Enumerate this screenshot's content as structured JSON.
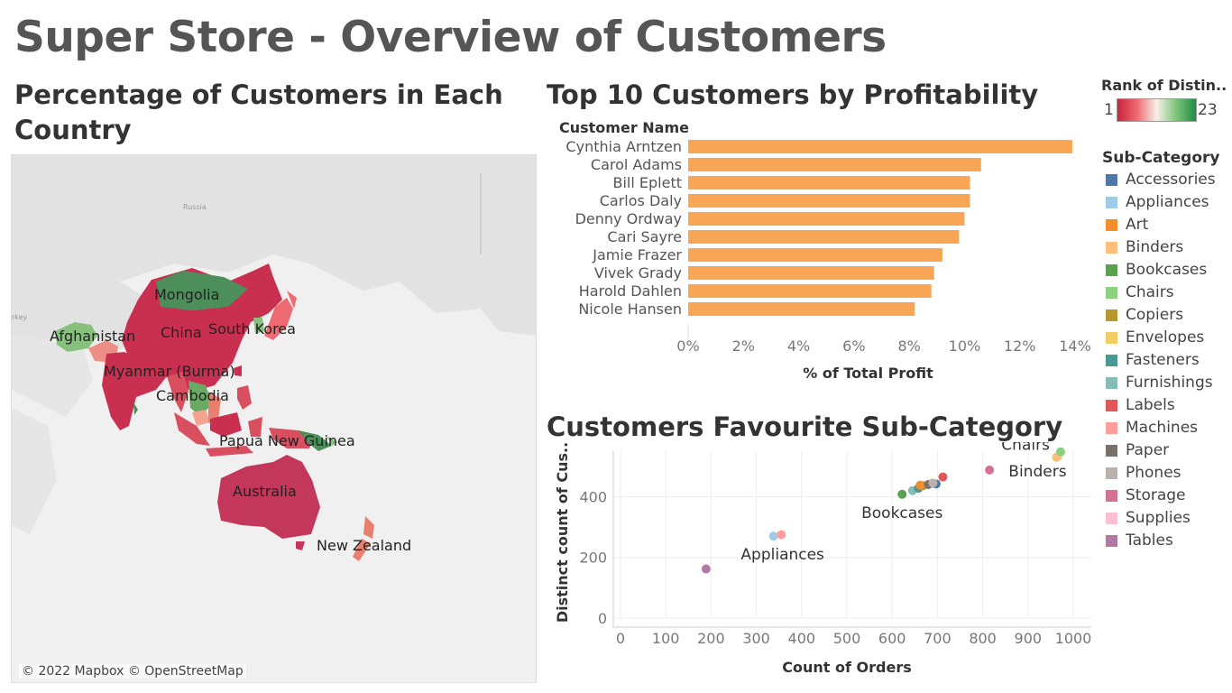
{
  "page_title": "Super Store - Overview of Customers",
  "map": {
    "title": "Percentage of Customers in Each Country",
    "title_line1": "Percentage of Customers in Each",
    "title_line2": "Country",
    "attribution": "© 2022 Mapbox © OpenStreetMap",
    "basemap_labels": {
      "russia": "Russia",
      "turkey": "rkey"
    },
    "labels": [
      "Mongolia",
      "China",
      "South Korea",
      "Afghanistan",
      "Myanmar (Burma)",
      "Cambodia",
      "Papua New Guinea",
      "Australia",
      "New Zealand"
    ]
  },
  "rank_legend": {
    "title": "Rank of Distin..",
    "min": "1",
    "max": "23",
    "colors": {
      "low": "#c9243a",
      "mid": "#f7f0e8",
      "high": "#1f8a44"
    }
  },
  "subcategory_legend": {
    "title": "Sub-Category",
    "items": [
      {
        "label": "Accessories",
        "color": "#4e79a7"
      },
      {
        "label": "Appliances",
        "color": "#a0cbe8"
      },
      {
        "label": "Art",
        "color": "#f28e2b"
      },
      {
        "label": "Binders",
        "color": "#ffbe7d"
      },
      {
        "label": "Bookcases",
        "color": "#59a14f"
      },
      {
        "label": "Chairs",
        "color": "#8cd17d"
      },
      {
        "label": "Copiers",
        "color": "#b6992d"
      },
      {
        "label": "Envelopes",
        "color": "#f1ce63"
      },
      {
        "label": "Fasteners",
        "color": "#499894"
      },
      {
        "label": "Furnishings",
        "color": "#86bcb6"
      },
      {
        "label": "Labels",
        "color": "#e15759"
      },
      {
        "label": "Machines",
        "color": "#ff9d9a"
      },
      {
        "label": "Paper",
        "color": "#79706e"
      },
      {
        "label": "Phones",
        "color": "#bab0ac"
      },
      {
        "label": "Storage",
        "color": "#d37295"
      },
      {
        "label": "Supplies",
        "color": "#fabfd2"
      },
      {
        "label": "Tables",
        "color": "#b07aa1"
      }
    ]
  },
  "chart_data": [
    {
      "type": "bar",
      "title": "Top 10 Customers by Profitability",
      "row_header": "Customer Name",
      "xlabel": "% of Total Profit",
      "ylabel": "",
      "categories": [
        "Cynthia Arntzen",
        "Carol Adams",
        "Bill Eplett",
        "Carlos Daly",
        "Denny Ordway",
        "Cari Sayre",
        "Jamie Frazer",
        "Vivek Grady",
        "Harold Dahlen",
        "Nicole Hansen"
      ],
      "values": [
        13.9,
        10.6,
        10.2,
        10.2,
        10.0,
        9.8,
        9.2,
        8.9,
        8.8,
        8.2
      ],
      "xlim": [
        0,
        14
      ],
      "xticks": [
        "0%",
        "2%",
        "4%",
        "6%",
        "8%",
        "10%",
        "12%",
        "14%"
      ],
      "bar_color": "#f8a655"
    },
    {
      "type": "scatter",
      "title": "Customers Favourite Sub-Category",
      "xlabel": "Count of Orders",
      "ylabel": "Distinct count of Cus..",
      "xlim": [
        0,
        1000
      ],
      "ylim": [
        0,
        550
      ],
      "xticks": [
        "0",
        "100",
        "200",
        "300",
        "400",
        "500",
        "600",
        "700",
        "800",
        "900",
        "1000"
      ],
      "yticks": [
        "0",
        "200",
        "400"
      ],
      "grid": true,
      "points": [
        {
          "series": "Tables",
          "x": 189,
          "y": 162
        },
        {
          "series": "Appliances",
          "x": 338,
          "y": 270
        },
        {
          "series": "Machines",
          "x": 355,
          "y": 275
        },
        {
          "series": "Bookcases",
          "x": 622,
          "y": 408
        },
        {
          "series": "Furnishings",
          "x": 645,
          "y": 420
        },
        {
          "series": "Fasteners",
          "x": 658,
          "y": 428
        },
        {
          "series": "Copiers",
          "x": 668,
          "y": 436
        },
        {
          "series": "Art",
          "x": 662,
          "y": 438
        },
        {
          "series": "Paper",
          "x": 680,
          "y": 440
        },
        {
          "series": "Accessories",
          "x": 697,
          "y": 442
        },
        {
          "series": "Phones",
          "x": 690,
          "y": 445
        },
        {
          "series": "Labels",
          "x": 712,
          "y": 465
        },
        {
          "series": "Storage",
          "x": 815,
          "y": 488
        },
        {
          "series": "Envelopes",
          "x": 963,
          "y": 530
        },
        {
          "series": "Binders",
          "x": 965,
          "y": 532
        },
        {
          "series": "Chairs",
          "x": 972,
          "y": 548
        }
      ],
      "annotations": [
        {
          "text": "Chairs",
          "series": "Chairs"
        },
        {
          "text": "Binders",
          "series": "Binders"
        },
        {
          "text": "Bookcases",
          "series": "Bookcases"
        },
        {
          "text": "Appliances",
          "series": "Appliances"
        }
      ]
    }
  ]
}
